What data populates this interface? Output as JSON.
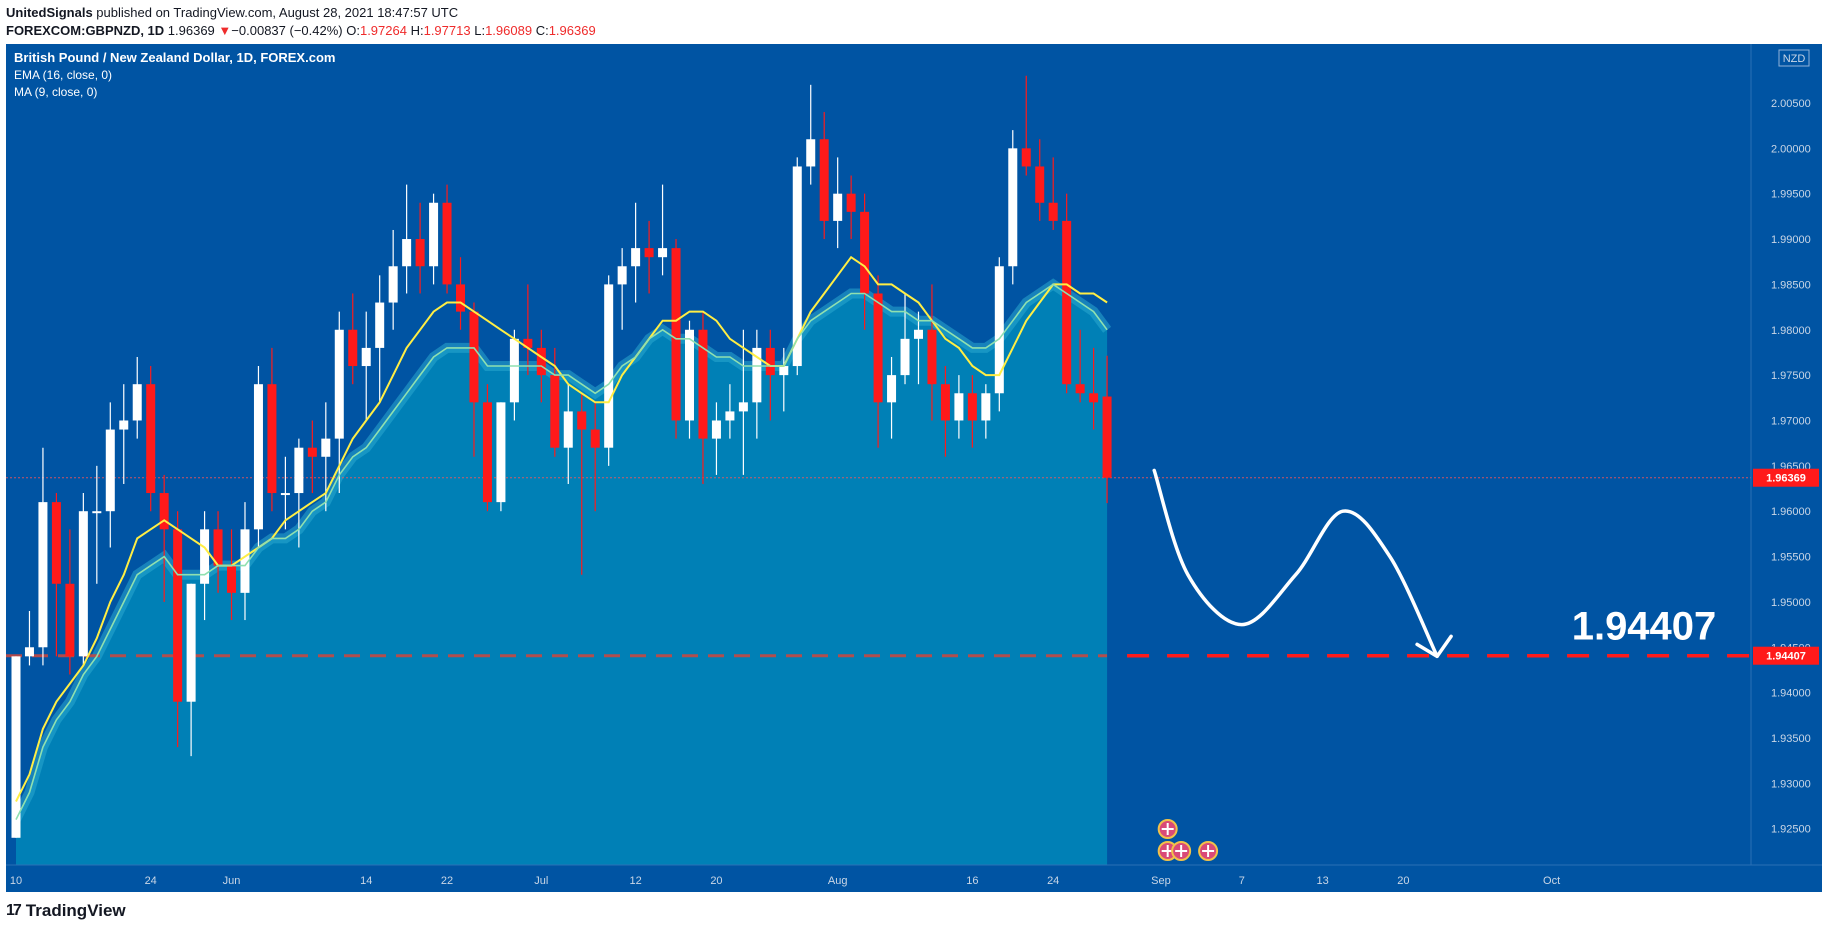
{
  "header": {
    "publisher": "UnitedSignals",
    "published_text": " published on TradingView.com, August 28, 2021 18:47:57 UTC",
    "symbol": "FOREXCOM:GBPNZD, 1D",
    "last": "1.96369",
    "arrow": "▼",
    "change": "−0.00837 (−0.42%)",
    "o_label": "O:",
    "o_val": "1.97264",
    "h_label": "H:",
    "h_val": "1.97713",
    "l_label": "L:",
    "l_val": "1.96089",
    "c_label": "C:",
    "c_val": "1.96369"
  },
  "legend": {
    "instrument": "British Pound / New Zealand Dollar, 1D, FOREX.com",
    "ema": "EMA (16, close, 0)",
    "ma": "MA (9, close, 0)"
  },
  "footer": {
    "brand": "TradingView",
    "mark": "17"
  },
  "colors": {
    "background": "#0054a3",
    "area_fill": "#0080b6",
    "area_edge": "#29a8d0",
    "bull": "#ffffff",
    "bear": "#ff1a1a",
    "ema_line": "#8fe0b0",
    "ma_line": "#ffee44",
    "target_line": "#ff1a1a",
    "forecast": "#ffffff"
  },
  "chart_data": {
    "type": "candlestick",
    "currency": "NZD",
    "ylim": [
      1.921,
      2.0115
    ],
    "y_ticks": [
      1.925,
      1.93,
      1.935,
      1.94,
      1.945,
      1.95,
      1.955,
      1.96,
      1.965,
      1.97,
      1.975,
      1.98,
      1.985,
      1.99,
      1.995,
      2.0,
      2.005
    ],
    "y_tick_labels": [
      "1.92500",
      "1.93000",
      "1.93500",
      "1.94000",
      "1.94500",
      "1.95000",
      "1.95500",
      "1.96000",
      "1.96500",
      "1.97000",
      "1.97500",
      "1.98000",
      "1.98500",
      "1.99000",
      "1.99500",
      "2.00000",
      "2.00500"
    ],
    "x_ticks": [
      {
        "label": "10",
        "i": 0
      },
      {
        "label": "24",
        "i": 10
      },
      {
        "label": "Jun",
        "i": 16
      },
      {
        "label": "14",
        "i": 26
      },
      {
        "label": "22",
        "i": 32
      },
      {
        "label": "Jul",
        "i": 39
      },
      {
        "label": "12",
        "i": 46
      },
      {
        "label": "20",
        "i": 52
      },
      {
        "label": "Aug",
        "i": 61
      },
      {
        "label": "16",
        "i": 71
      },
      {
        "label": "24",
        "i": 77
      },
      {
        "label": "Sep",
        "i": 85
      },
      {
        "label": "7",
        "i": 91
      },
      {
        "label": "13",
        "i": 97
      },
      {
        "label": "20",
        "i": 103
      },
      {
        "label": "Oct",
        "i": 114
      }
    ],
    "candles": [
      {
        "o": 1.924,
        "h": 1.944,
        "l": 1.924,
        "c": 1.944
      },
      {
        "o": 1.944,
        "h": 1.949,
        "l": 1.943,
        "c": 1.945
      },
      {
        "o": 1.945,
        "h": 1.967,
        "l": 1.943,
        "c": 1.961
      },
      {
        "o": 1.961,
        "h": 1.962,
        "l": 1.944,
        "c": 1.952
      },
      {
        "o": 1.952,
        "h": 1.958,
        "l": 1.942,
        "c": 1.944
      },
      {
        "o": 1.944,
        "h": 1.962,
        "l": 1.943,
        "c": 1.96
      },
      {
        "o": 1.96,
        "h": 1.965,
        "l": 1.952,
        "c": 1.96
      },
      {
        "o": 1.96,
        "h": 1.972,
        "l": 1.956,
        "c": 1.969
      },
      {
        "o": 1.969,
        "h": 1.974,
        "l": 1.963,
        "c": 1.97
      },
      {
        "o": 1.97,
        "h": 1.977,
        "l": 1.968,
        "c": 1.974
      },
      {
        "o": 1.974,
        "h": 1.976,
        "l": 1.96,
        "c": 1.962
      },
      {
        "o": 1.962,
        "h": 1.964,
        "l": 1.95,
        "c": 1.958
      },
      {
        "o": 1.958,
        "h": 1.96,
        "l": 1.934,
        "c": 1.939
      },
      {
        "o": 1.939,
        "h": 1.952,
        "l": 1.933,
        "c": 1.952
      },
      {
        "o": 1.952,
        "h": 1.96,
        "l": 1.948,
        "c": 1.958
      },
      {
        "o": 1.958,
        "h": 1.96,
        "l": 1.951,
        "c": 1.954
      },
      {
        "o": 1.954,
        "h": 1.958,
        "l": 1.948,
        "c": 1.951
      },
      {
        "o": 1.951,
        "h": 1.961,
        "l": 1.948,
        "c": 1.958
      },
      {
        "o": 1.958,
        "h": 1.976,
        "l": 1.956,
        "c": 1.974
      },
      {
        "o": 1.974,
        "h": 1.978,
        "l": 1.96,
        "c": 1.962
      },
      {
        "o": 1.962,
        "h": 1.966,
        "l": 1.958,
        "c": 1.962
      },
      {
        "o": 1.962,
        "h": 1.968,
        "l": 1.956,
        "c": 1.967
      },
      {
        "o": 1.967,
        "h": 1.97,
        "l": 1.962,
        "c": 1.966
      },
      {
        "o": 1.966,
        "h": 1.972,
        "l": 1.96,
        "c": 1.968
      },
      {
        "o": 1.968,
        "h": 1.982,
        "l": 1.962,
        "c": 1.98
      },
      {
        "o": 1.98,
        "h": 1.984,
        "l": 1.974,
        "c": 1.976
      },
      {
        "o": 1.976,
        "h": 1.982,
        "l": 1.97,
        "c": 1.978
      },
      {
        "o": 1.978,
        "h": 1.986,
        "l": 1.972,
        "c": 1.983
      },
      {
        "o": 1.983,
        "h": 1.991,
        "l": 1.98,
        "c": 1.987
      },
      {
        "o": 1.987,
        "h": 1.996,
        "l": 1.984,
        "c": 1.99
      },
      {
        "o": 1.99,
        "h": 1.994,
        "l": 1.984,
        "c": 1.987
      },
      {
        "o": 1.987,
        "h": 1.995,
        "l": 1.985,
        "c": 1.994
      },
      {
        "o": 1.994,
        "h": 1.996,
        "l": 1.984,
        "c": 1.985
      },
      {
        "o": 1.985,
        "h": 1.988,
        "l": 1.98,
        "c": 1.982
      },
      {
        "o": 1.982,
        "h": 1.983,
        "l": 1.966,
        "c": 1.972
      },
      {
        "o": 1.972,
        "h": 1.974,
        "l": 1.96,
        "c": 1.961
      },
      {
        "o": 1.961,
        "h": 1.972,
        "l": 1.96,
        "c": 1.972
      },
      {
        "o": 1.972,
        "h": 1.98,
        "l": 1.97,
        "c": 1.979
      },
      {
        "o": 1.979,
        "h": 1.985,
        "l": 1.975,
        "c": 1.978
      },
      {
        "o": 1.978,
        "h": 1.98,
        "l": 1.972,
        "c": 1.975
      },
      {
        "o": 1.975,
        "h": 1.978,
        "l": 1.966,
        "c": 1.967
      },
      {
        "o": 1.967,
        "h": 1.974,
        "l": 1.963,
        "c": 1.971
      },
      {
        "o": 1.971,
        "h": 1.973,
        "l": 1.953,
        "c": 1.969
      },
      {
        "o": 1.969,
        "h": 1.972,
        "l": 1.96,
        "c": 1.967
      },
      {
        "o": 1.967,
        "h": 1.986,
        "l": 1.965,
        "c": 1.985
      },
      {
        "o": 1.985,
        "h": 1.989,
        "l": 1.98,
        "c": 1.987
      },
      {
        "o": 1.987,
        "h": 1.994,
        "l": 1.983,
        "c": 1.989
      },
      {
        "o": 1.989,
        "h": 1.992,
        "l": 1.984,
        "c": 1.988
      },
      {
        "o": 1.988,
        "h": 1.996,
        "l": 1.986,
        "c": 1.989
      },
      {
        "o": 1.989,
        "h": 1.99,
        "l": 1.968,
        "c": 1.97
      },
      {
        "o": 1.97,
        "h": 1.981,
        "l": 1.968,
        "c": 1.98
      },
      {
        "o": 1.98,
        "h": 1.982,
        "l": 1.963,
        "c": 1.968
      },
      {
        "o": 1.968,
        "h": 1.972,
        "l": 1.964,
        "c": 1.97
      },
      {
        "o": 1.97,
        "h": 1.974,
        "l": 1.968,
        "c": 1.971
      },
      {
        "o": 1.971,
        "h": 1.98,
        "l": 1.964,
        "c": 1.972
      },
      {
        "o": 1.972,
        "h": 1.98,
        "l": 1.968,
        "c": 1.978
      },
      {
        "o": 1.978,
        "h": 1.98,
        "l": 1.97,
        "c": 1.975
      },
      {
        "o": 1.975,
        "h": 1.978,
        "l": 1.971,
        "c": 1.976
      },
      {
        "o": 1.976,
        "h": 1.999,
        "l": 1.975,
        "c": 1.998
      },
      {
        "o": 1.998,
        "h": 2.007,
        "l": 1.996,
        "c": 2.001
      },
      {
        "o": 2.001,
        "h": 2.004,
        "l": 1.99,
        "c": 1.992
      },
      {
        "o": 1.992,
        "h": 1.999,
        "l": 1.989,
        "c": 1.995
      },
      {
        "o": 1.995,
        "h": 1.997,
        "l": 1.99,
        "c": 1.993
      },
      {
        "o": 1.993,
        "h": 1.995,
        "l": 1.98,
        "c": 1.984
      },
      {
        "o": 1.984,
        "h": 1.986,
        "l": 1.967,
        "c": 1.972
      },
      {
        "o": 1.972,
        "h": 1.977,
        "l": 1.968,
        "c": 1.975
      },
      {
        "o": 1.975,
        "h": 1.984,
        "l": 1.974,
        "c": 1.979
      },
      {
        "o": 1.979,
        "h": 1.982,
        "l": 1.974,
        "c": 1.98
      },
      {
        "o": 1.98,
        "h": 1.985,
        "l": 1.97,
        "c": 1.974
      },
      {
        "o": 1.974,
        "h": 1.976,
        "l": 1.966,
        "c": 1.97
      },
      {
        "o": 1.97,
        "h": 1.975,
        "l": 1.968,
        "c": 1.973
      },
      {
        "o": 1.973,
        "h": 1.975,
        "l": 1.967,
        "c": 1.97
      },
      {
        "o": 1.97,
        "h": 1.974,
        "l": 1.968,
        "c": 1.973
      },
      {
        "o": 1.973,
        "h": 1.988,
        "l": 1.971,
        "c": 1.987
      },
      {
        "o": 1.987,
        "h": 2.002,
        "l": 1.985,
        "c": 2.0
      },
      {
        "o": 2.0,
        "h": 2.008,
        "l": 1.997,
        "c": 1.998
      },
      {
        "o": 1.998,
        "h": 2.001,
        "l": 1.992,
        "c": 1.994
      },
      {
        "o": 1.994,
        "h": 1.999,
        "l": 1.991,
        "c": 1.992
      },
      {
        "o": 1.992,
        "h": 1.995,
        "l": 1.973,
        "c": 1.974
      },
      {
        "o": 1.974,
        "h": 1.98,
        "l": 1.972,
        "c": 1.973
      },
      {
        "o": 1.973,
        "h": 1.978,
        "l": 1.969,
        "c": 1.972
      },
      {
        "o": 1.97264,
        "h": 1.97713,
        "l": 1.96089,
        "c": 1.96369
      }
    ],
    "ema16": [
      1.926,
      1.929,
      1.934,
      1.937,
      1.939,
      1.942,
      1.944,
      1.947,
      1.95,
      1.953,
      1.954,
      1.955,
      1.953,
      1.953,
      1.953,
      1.954,
      1.954,
      1.954,
      1.956,
      1.957,
      1.957,
      1.958,
      1.96,
      1.961,
      1.964,
      1.966,
      1.967,
      1.969,
      1.971,
      1.973,
      1.975,
      1.977,
      1.978,
      1.978,
      1.978,
      1.976,
      1.976,
      1.976,
      1.976,
      1.976,
      1.975,
      1.975,
      1.974,
      1.973,
      1.974,
      1.976,
      1.977,
      1.979,
      1.98,
      1.979,
      1.979,
      1.978,
      1.977,
      1.977,
      1.976,
      1.976,
      1.976,
      1.976,
      1.979,
      1.981,
      1.982,
      1.983,
      1.984,
      1.984,
      1.983,
      1.982,
      1.982,
      1.981,
      1.981,
      1.98,
      1.979,
      1.978,
      1.978,
      1.979,
      1.981,
      1.983,
      1.984,
      1.985,
      1.984,
      1.983,
      1.982,
      1.98
    ],
    "ma9": [
      1.928,
      1.931,
      1.936,
      1.939,
      1.941,
      1.943,
      1.946,
      1.95,
      1.953,
      1.957,
      1.958,
      1.959,
      1.958,
      1.957,
      1.956,
      1.954,
      1.954,
      1.955,
      1.956,
      1.957,
      1.959,
      1.96,
      1.961,
      1.962,
      1.965,
      1.968,
      1.97,
      1.972,
      1.975,
      1.978,
      1.98,
      1.982,
      1.983,
      1.983,
      1.982,
      1.981,
      1.98,
      1.979,
      1.978,
      1.977,
      1.976,
      1.974,
      1.973,
      1.972,
      1.972,
      1.975,
      1.977,
      1.979,
      1.981,
      1.981,
      1.982,
      1.982,
      1.981,
      1.979,
      1.978,
      1.977,
      1.976,
      1.976,
      1.979,
      1.982,
      1.984,
      1.986,
      1.988,
      1.987,
      1.985,
      1.985,
      1.984,
      1.983,
      1.981,
      1.979,
      1.978,
      1.976,
      1.975,
      1.975,
      1.978,
      1.981,
      1.983,
      1.985,
      1.985,
      1.984,
      1.984,
      1.983
    ],
    "last_price": {
      "value": 1.96369,
      "label": "1.96369"
    },
    "target": {
      "value": 1.94407,
      "label": "1.94407",
      "annotation": "1.94407"
    },
    "forecast_path": [
      {
        "i": 84.5,
        "y": 1.9645
      },
      {
        "i": 87,
        "y": 1.953
      },
      {
        "i": 91,
        "y": 1.9475
      },
      {
        "i": 95,
        "y": 1.953
      },
      {
        "i": 98.5,
        "y": 1.96
      },
      {
        "i": 102,
        "y": 1.955
      },
      {
        "i": 105.5,
        "y": 1.944
      }
    ],
    "events": [
      {
        "i": 85.5,
        "row": 0,
        "flag": "NZ"
      },
      {
        "i": 85.5,
        "row": 1,
        "flag": "UK"
      },
      {
        "i": 86.5,
        "row": 1,
        "flag": "UK"
      },
      {
        "i": 88.5,
        "row": 1,
        "flag": "UK"
      }
    ]
  }
}
